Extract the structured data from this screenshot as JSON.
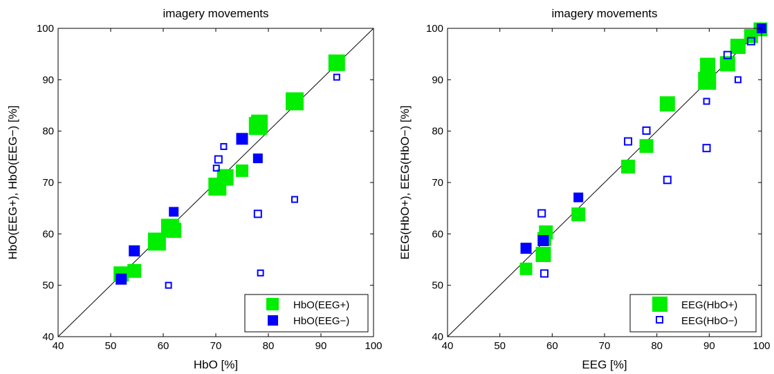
{
  "chart_data": [
    {
      "type": "scatter",
      "title": "imagery movements",
      "xlabel": "HbO [%]",
      "ylabel": "HbO(EEG+), HbO(EEG−) [%]",
      "xlim": [
        40,
        100
      ],
      "ylim": [
        40,
        100
      ],
      "xticks": [
        "40",
        "50",
        "60",
        "70",
        "80",
        "90",
        "100"
      ],
      "yticks": [
        "40",
        "50",
        "60",
        "70",
        "80",
        "90",
        "100"
      ],
      "diagonal": true,
      "grid": false,
      "legend_position": "bottom-right",
      "series": [
        {
          "name": "HbO(EEG+)",
          "color": "#00ee00",
          "marker": "filled-square",
          "points": [
            {
              "x": 52,
              "y": 52.2,
              "s": 22
            },
            {
              "x": 54.5,
              "y": 52.8,
              "s": 20
            },
            {
              "x": 58.8,
              "y": 58.5,
              "s": 26
            },
            {
              "x": 61.3,
              "y": 61.2,
              "s": 26
            },
            {
              "x": 62,
              "y": 60.7,
              "s": 22
            },
            {
              "x": 70.3,
              "y": 69.2,
              "s": 26
            },
            {
              "x": 71.8,
              "y": 71,
              "s": 24
            },
            {
              "x": 75,
              "y": 72.3,
              "s": 18
            },
            {
              "x": 78,
              "y": 81,
              "s": 26
            },
            {
              "x": 78.3,
              "y": 81.6,
              "s": 24
            },
            {
              "x": 85,
              "y": 85.8,
              "s": 26
            },
            {
              "x": 93,
              "y": 93.3,
              "s": 24
            }
          ]
        },
        {
          "name": "HbO(EEG−)",
          "color": "#0000ff",
          "marker": "square",
          "points": [
            {
              "x": 52,
              "y": 51.2,
              "s": 16
            },
            {
              "x": 54.5,
              "y": 56.7,
              "s": 16
            },
            {
              "x": 61,
              "y": 50,
              "s": 10
            },
            {
              "x": 62,
              "y": 64.3,
              "s": 14
            },
            {
              "x": 70.1,
              "y": 72.8,
              "s": 10
            },
            {
              "x": 70.5,
              "y": 74.5,
              "s": 12
            },
            {
              "x": 71.5,
              "y": 77,
              "s": 10
            },
            {
              "x": 75,
              "y": 78.5,
              "s": 17
            },
            {
              "x": 78,
              "y": 74.7,
              "s": 14
            },
            {
              "x": 78,
              "y": 63.9,
              "s": 12
            },
            {
              "x": 78.5,
              "y": 52.4,
              "s": 10
            },
            {
              "x": 85,
              "y": 66.7,
              "s": 10
            },
            {
              "x": 93,
              "y": 90.5,
              "s": 10
            }
          ]
        }
      ]
    },
    {
      "type": "scatter",
      "title": "imagery movements",
      "xlabel": "EEG [%]",
      "ylabel": "EEG(HbO+), EEG(HbO−) [%]",
      "xlim": [
        40,
        100
      ],
      "ylim": [
        40,
        100
      ],
      "xticks": [
        "40",
        "50",
        "60",
        "70",
        "80",
        "90",
        "100"
      ],
      "yticks": [
        "40",
        "50",
        "60",
        "70",
        "80",
        "90",
        "100"
      ],
      "diagonal": true,
      "grid": false,
      "legend_position": "bottom-right",
      "series": [
        {
          "name": "EEG(HbO+)",
          "color": "#00ee00",
          "marker": "filled-square",
          "points": [
            {
              "x": 55,
              "y": 53.2,
              "s": 18
            },
            {
              "x": 58.3,
              "y": 56,
              "s": 22
            },
            {
              "x": 58.5,
              "y": 59,
              "s": 20
            },
            {
              "x": 58.8,
              "y": 60.3,
              "s": 20
            },
            {
              "x": 65,
              "y": 63.8,
              "s": 20
            },
            {
              "x": 74.5,
              "y": 73.1,
              "s": 20
            },
            {
              "x": 78,
              "y": 77.1,
              "s": 20
            },
            {
              "x": 82,
              "y": 85.3,
              "s": 22
            },
            {
              "x": 89.6,
              "y": 89.8,
              "s": 26
            },
            {
              "x": 89.7,
              "y": 92.8,
              "s": 22
            },
            {
              "x": 93.5,
              "y": 93.1,
              "s": 22
            },
            {
              "x": 95.5,
              "y": 96.5,
              "s": 22
            },
            {
              "x": 98,
              "y": 98.5,
              "s": 20
            },
            {
              "x": 99.8,
              "y": 99.8,
              "s": 20
            }
          ]
        },
        {
          "name": "EEG(HbO−)",
          "color": "#0000ff",
          "marker": "square",
          "points": [
            {
              "x": 55,
              "y": 57.2,
              "s": 16
            },
            {
              "x": 58,
              "y": 64,
              "s": 12
            },
            {
              "x": 58.3,
              "y": 58.7,
              "s": 16
            },
            {
              "x": 58.5,
              "y": 52.3,
              "s": 12
            },
            {
              "x": 65,
              "y": 67.1,
              "s": 14
            },
            {
              "x": 74.5,
              "y": 78,
              "s": 12
            },
            {
              "x": 78,
              "y": 80.1,
              "s": 12
            },
            {
              "x": 82,
              "y": 70.5,
              "s": 12
            },
            {
              "x": 89.5,
              "y": 85.8,
              "s": 10
            },
            {
              "x": 89.5,
              "y": 76.7,
              "s": 12
            },
            {
              "x": 93.5,
              "y": 94.8,
              "s": 12
            },
            {
              "x": 95.5,
              "y": 90,
              "s": 10
            },
            {
              "x": 98,
              "y": 97.5,
              "s": 12
            },
            {
              "x": 100,
              "y": 100,
              "s": 14
            }
          ]
        }
      ]
    }
  ]
}
